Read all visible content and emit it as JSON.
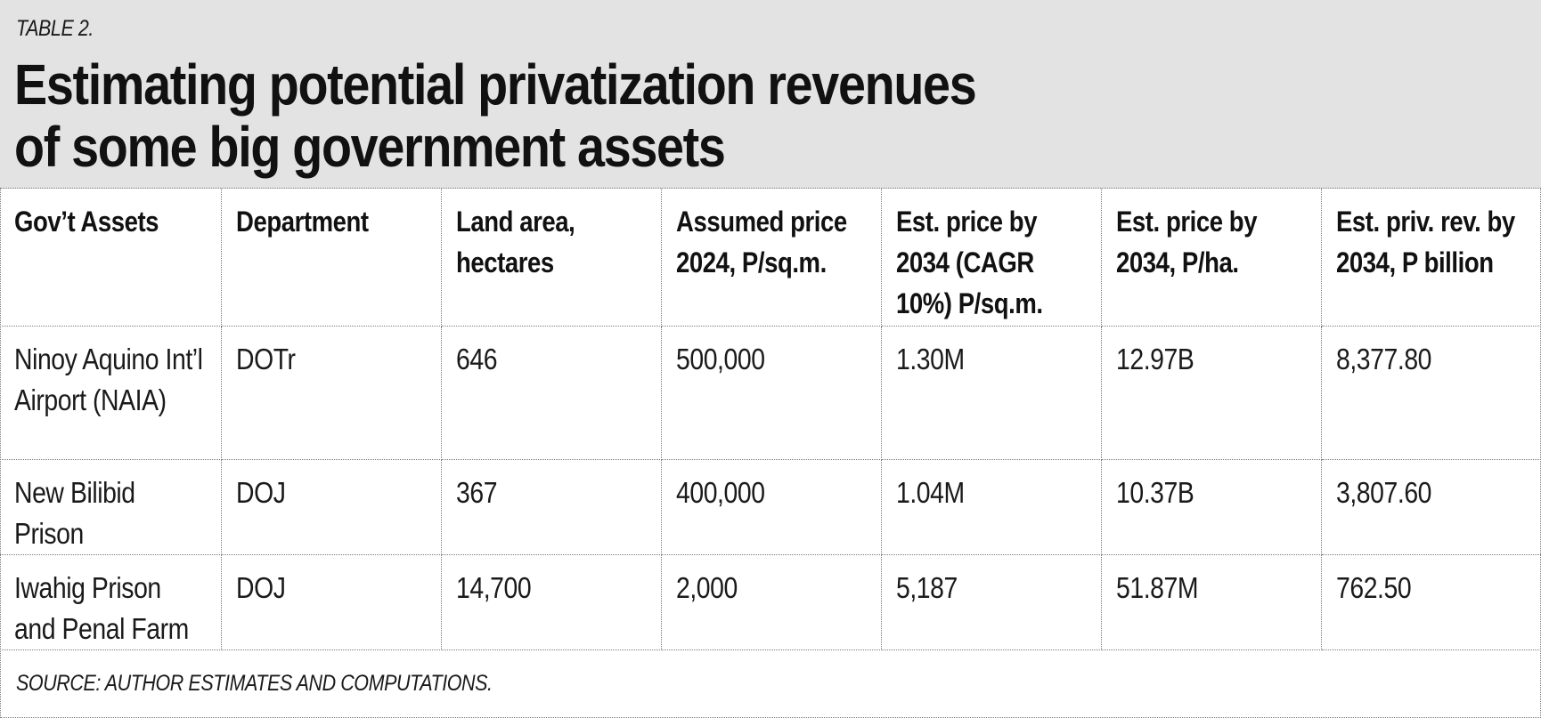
{
  "table_label": "TABLE 2.",
  "title_line1": "Estimating potential privatization revenues",
  "title_line2": "of some big government assets",
  "columns": [
    "Gov’t Assets",
    "Department",
    "Land area, hectares",
    "Assumed price 2024, P/sq.m.",
    "Est. price by 2034 (CAGR 10%) P/sq.m.",
    "Est. price by 2034, P/ha.",
    "Est. priv. rev. by 2034, P billion"
  ],
  "rows": [
    [
      "Ninoy Aquino Int’l Airport (NAIA)",
      "DOTr",
      "646",
      "500,000",
      "1.30M",
      "12.97B",
      "8,377.80"
    ],
    [
      "New Bilibid Prison",
      "DOJ",
      "367",
      "400,000",
      "1.04M",
      "10.37B",
      "3,807.60"
    ],
    [
      "Iwahig Prison and Penal Farm",
      "DOJ",
      "14,700",
      "2,000",
      "5,187",
      "51.87M",
      "762.50"
    ]
  ],
  "source": "SOURCE: AUTHOR ESTIMATES AND COMPUTATIONS.",
  "colors": {
    "header_background": "#e3e3e3",
    "border": "#7a7a7a",
    "text": "#1a1a1a"
  }
}
